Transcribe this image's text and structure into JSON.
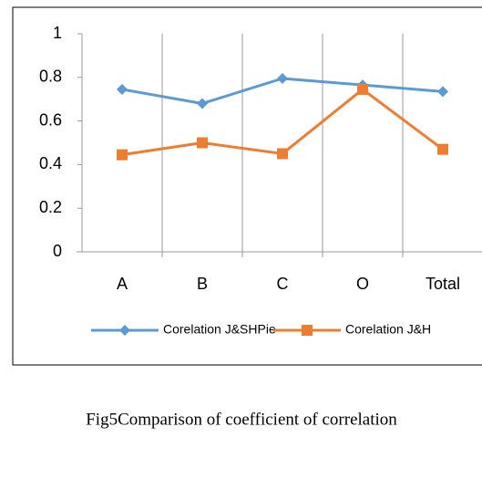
{
  "chart_data": {
    "type": "line",
    "categories": [
      "A",
      "B",
      "C",
      "O",
      "Total"
    ],
    "series": [
      {
        "name": "Corelation J&SHPie",
        "color": "#5b9bd5",
        "marker": "diamond",
        "values": [
          0.745,
          0.68,
          0.795,
          0.765,
          0.735
        ]
      },
      {
        "name": "Corelation J&H",
        "color": "#ed7d31",
        "marker": "square",
        "values": [
          0.445,
          0.5,
          0.45,
          0.745,
          0.47
        ]
      }
    ],
    "ylim": [
      0,
      1
    ],
    "yticks": [
      0,
      0.2,
      0.4,
      0.6,
      0.8,
      1
    ],
    "legend": "bottom"
  },
  "caption": "Fig5Comparison of coefficient of correlation"
}
